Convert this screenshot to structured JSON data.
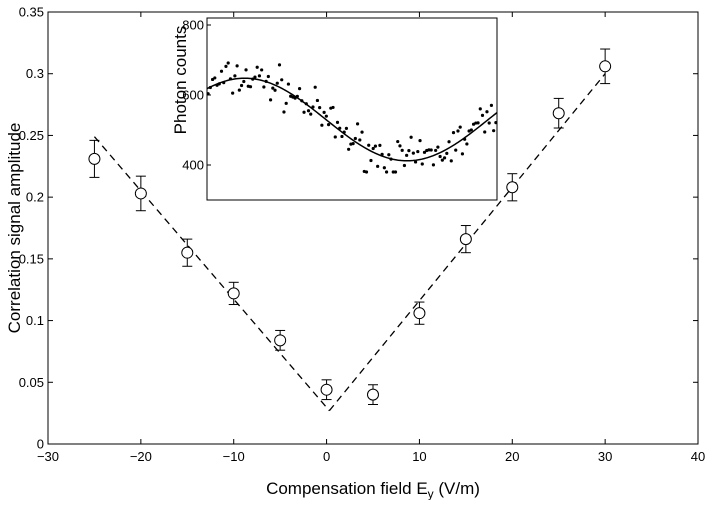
{
  "chart_data": [
    {
      "type": "scatter",
      "title": "",
      "xlabel": "Compensation field E",
      "xlabel_sub": "y",
      "xlabel_unit": " (V/m)",
      "ylabel": "Correlation signal amplitude",
      "xlim": [
        -30,
        40
      ],
      "ylim": [
        0,
        0.35
      ],
      "xticks": [
        "−30",
        "−20",
        "−10",
        "0",
        "10",
        "20",
        "30",
        "40"
      ],
      "yticks": [
        "0",
        "0.05",
        "0.1",
        "0.15",
        "0.2",
        "0.25",
        "0.3",
        "0.35"
      ],
      "grid": false,
      "series": [
        {
          "marker": "open-circle",
          "x": [
            -25,
            -20,
            -15,
            -10,
            -5,
            0,
            5,
            10,
            15,
            20,
            25,
            30
          ],
          "y": [
            0.231,
            0.203,
            0.155,
            0.122,
            0.084,
            0.044,
            0.04,
            0.106,
            0.166,
            0.208,
            0.268,
            0.306
          ],
          "error": [
            0.015,
            0.014,
            0.011,
            0.009,
            0.008,
            0.008,
            0.008,
            0.009,
            0.011,
            0.011,
            0.012,
            0.014
          ]
        }
      ],
      "fit_lines": [
        {
          "style": "dashed",
          "x": [
            -25,
            0.3
          ],
          "y": [
            0.249,
            0.027
          ]
        },
        {
          "style": "dashed",
          "x": [
            0.3,
            30
          ],
          "y": [
            0.027,
            0.3
          ]
        }
      ]
    },
    {
      "type": "scatter",
      "title": "",
      "ylabel": "Photon counts",
      "ylim": [
        300,
        820
      ],
      "yticks": [
        "400",
        "600",
        "800"
      ],
      "x_range": [
        0,
        100
      ],
      "xticks": [],
      "noise_seed": 7,
      "n_points": 130,
      "model_curve": {
        "style": "solid",
        "offset": 530,
        "amplitude": 118,
        "phase_peak_x": 13,
        "period": 112
      },
      "grid": false
    }
  ]
}
